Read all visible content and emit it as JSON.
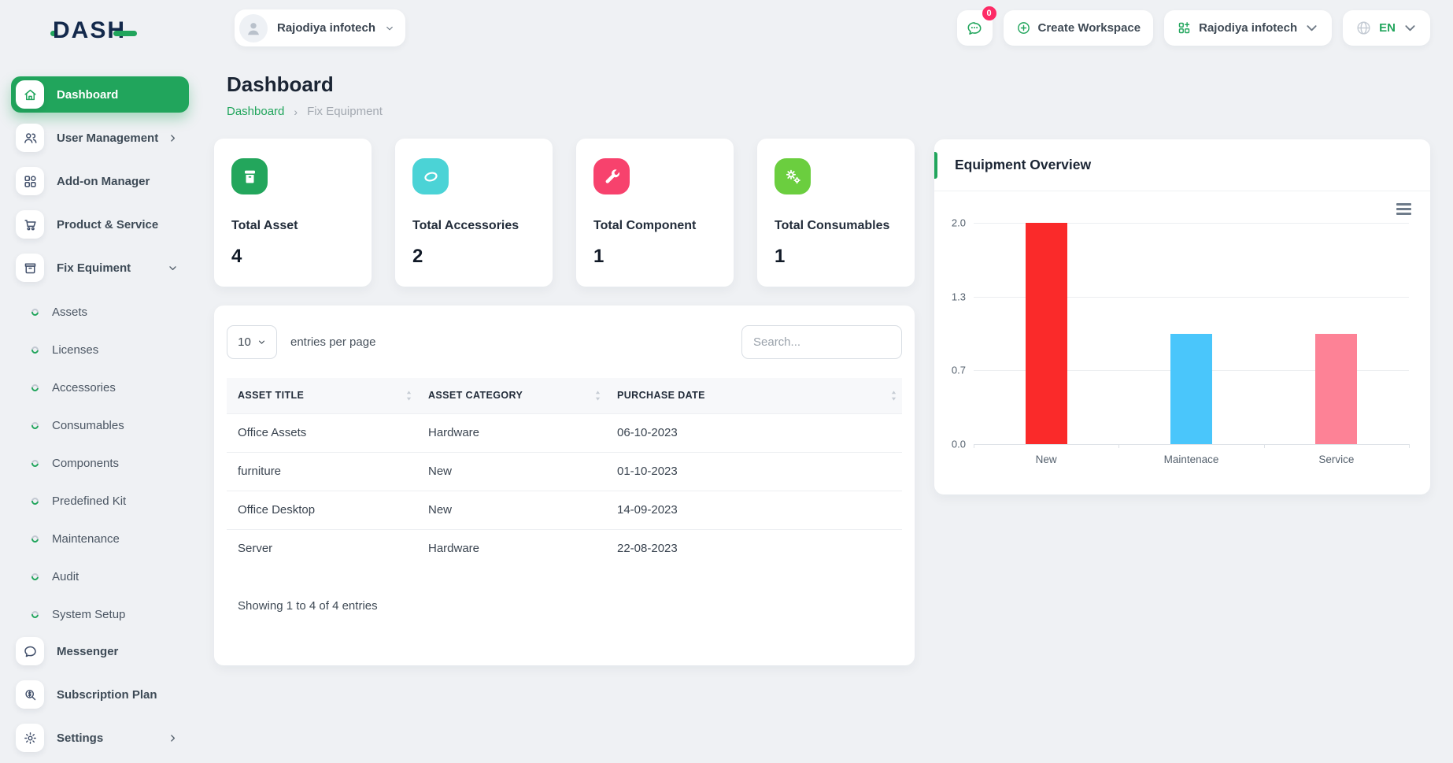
{
  "brand": {
    "logo_text": "DASH"
  },
  "header": {
    "workspace_selector": {
      "label": "Rajodiya infotech"
    },
    "messages_badge": "0",
    "create_workspace_label": "Create Workspace",
    "workspace_menu_label": "Rajodiya infotech",
    "language": {
      "code": "EN"
    }
  },
  "page": {
    "title": "Dashboard",
    "breadcrumb": [
      "Dashboard",
      "Fix Equipment"
    ]
  },
  "sidebar": {
    "items": [
      {
        "label": "Dashboard",
        "icon": "home",
        "type": "main",
        "active": true
      },
      {
        "label": "User Management",
        "icon": "users",
        "type": "main",
        "chevron": "right"
      },
      {
        "label": "Add-on Manager",
        "icon": "grid",
        "type": "main"
      },
      {
        "label": "Product & Service",
        "icon": "cart",
        "type": "main"
      },
      {
        "label": "Fix Equiment",
        "icon": "box",
        "type": "main",
        "chevron": "down"
      },
      {
        "label": "Assets",
        "type": "sub"
      },
      {
        "label": "Licenses",
        "type": "sub"
      },
      {
        "label": "Accessories",
        "type": "sub"
      },
      {
        "label": "Consumables",
        "type": "sub"
      },
      {
        "label": "Components",
        "type": "sub"
      },
      {
        "label": "Predefined Kit",
        "type": "sub"
      },
      {
        "label": "Maintenance",
        "type": "sub"
      },
      {
        "label": "Audit",
        "type": "sub"
      },
      {
        "label": "System Setup",
        "type": "sub"
      },
      {
        "label": "Messenger",
        "icon": "chat",
        "type": "main"
      },
      {
        "label": "Subscription Plan",
        "icon": "search-dollar",
        "type": "main"
      },
      {
        "label": "Settings",
        "icon": "gear",
        "type": "main",
        "chevron": "right"
      }
    ]
  },
  "stats": [
    {
      "label": "Total Asset",
      "value": "4",
      "icon": "archive-box",
      "color": "#23a65c"
    },
    {
      "label": "Total Accessories",
      "value": "2",
      "icon": "disc",
      "color": "#4bd3d6"
    },
    {
      "label": "Total Component",
      "value": "1",
      "icon": "wrench",
      "color": "#f7426d"
    },
    {
      "label": "Total Consumables",
      "value": "1",
      "icon": "gears",
      "color": "#6bce3f"
    }
  ],
  "table": {
    "entries_select": "10",
    "entries_label": "entries per page",
    "search_placeholder": "Search...",
    "columns": [
      "ASSET TITLE",
      "ASSET CATEGORY",
      "PURCHASE DATE"
    ],
    "rows": [
      [
        "Office Assets",
        "Hardware",
        "06-10-2023"
      ],
      [
        "furniture",
        "New",
        "01-10-2023"
      ],
      [
        "Office Desktop",
        "New",
        "14-09-2023"
      ],
      [
        "Server",
        "Hardware",
        "22-08-2023"
      ]
    ],
    "footer": "Showing 1 to 4 of 4 entries"
  },
  "chart_card": {
    "title": "Equipment Overview"
  },
  "chart_data": {
    "type": "bar",
    "categories": [
      "New",
      "Maintenace",
      "Service"
    ],
    "values": [
      2,
      1,
      1
    ],
    "bar_colors": [
      "#fa2a2a",
      "#4ac6fb",
      "#fd8296"
    ],
    "title": "Equipment Overview",
    "xlabel": "",
    "ylabel": "",
    "ylim": [
      0,
      2
    ],
    "y_ticks": [
      2.0,
      1.3,
      0.7,
      0.0
    ],
    "grid": true,
    "legend": false
  }
}
